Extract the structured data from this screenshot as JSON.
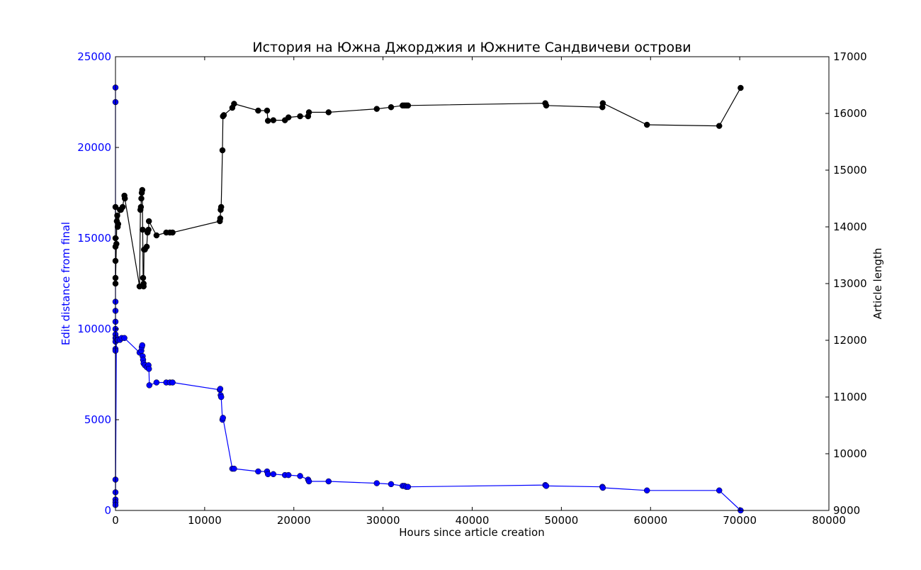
{
  "chart_data": {
    "type": "line",
    "title": "История на Южна Джорджия и Южните Сандвичеви острови",
    "xlabel": "Hours since article creation",
    "ylabel_left": "Edit distance from final",
    "ylabel_right": "Article length",
    "xlim": [
      0,
      80000
    ],
    "ylim_left": [
      0,
      25000
    ],
    "ylim_right": [
      9000,
      17000
    ],
    "x_ticks": [
      "0",
      "10000",
      "20000",
      "30000",
      "40000",
      "50000",
      "60000",
      "70000",
      "80000"
    ],
    "y_left_ticks": [
      "0",
      "5000",
      "10000",
      "15000",
      "20000",
      "25000"
    ],
    "y_right_ticks": [
      "9000",
      "10000",
      "11000",
      "12000",
      "13000",
      "14000",
      "15000",
      "16000",
      "17000"
    ],
    "grid": false,
    "colors": {
      "left_series": "#0000ff",
      "right_series": "#000000",
      "left_axis_text": "#0000ff"
    },
    "series": [
      {
        "axis": "left",
        "points": [
          [
            0,
            23300
          ],
          [
            0,
            22500
          ],
          [
            0,
            11500
          ],
          [
            0,
            11000
          ],
          [
            0,
            10400
          ],
          [
            0,
            10000
          ],
          [
            0,
            9700
          ],
          [
            0,
            9500
          ],
          [
            0,
            9300
          ],
          [
            0,
            8900
          ],
          [
            0,
            8800
          ],
          [
            0,
            1700
          ],
          [
            0,
            1000
          ],
          [
            0,
            600
          ],
          [
            0,
            450
          ],
          [
            0,
            300
          ],
          [
            100,
            9500
          ],
          [
            200,
            9400
          ],
          [
            300,
            9400
          ],
          [
            500,
            9400
          ],
          [
            700,
            9500
          ],
          [
            1000,
            9500
          ],
          [
            2700,
            8700
          ],
          [
            2900,
            8800
          ],
          [
            2950,
            9000
          ],
          [
            3000,
            9100
          ],
          [
            3050,
            8500
          ],
          [
            3100,
            8300
          ],
          [
            3150,
            8100
          ],
          [
            3300,
            8000
          ],
          [
            3500,
            7900
          ],
          [
            3700,
            8000
          ],
          [
            3750,
            7800
          ],
          [
            3800,
            6900
          ],
          [
            4600,
            7050
          ],
          [
            5700,
            7050
          ],
          [
            6100,
            7050
          ],
          [
            6400,
            7050
          ],
          [
            11700,
            6650
          ],
          [
            11750,
            6700
          ],
          [
            11800,
            6350
          ],
          [
            11850,
            6250
          ],
          [
            12000,
            5000
          ],
          [
            12050,
            5100
          ],
          [
            13100,
            2300
          ],
          [
            13300,
            2300
          ],
          [
            16000,
            2150
          ],
          [
            17000,
            2150
          ],
          [
            17100,
            2000
          ],
          [
            17700,
            2000
          ],
          [
            19000,
            1950
          ],
          [
            19400,
            1950
          ],
          [
            20700,
            1900
          ],
          [
            21600,
            1700
          ],
          [
            21700,
            1600
          ],
          [
            23900,
            1600
          ],
          [
            29300,
            1500
          ],
          [
            30900,
            1450
          ],
          [
            32200,
            1350
          ],
          [
            32400,
            1350
          ],
          [
            32600,
            1300
          ],
          [
            32800,
            1300
          ],
          [
            48200,
            1400
          ],
          [
            48300,
            1350
          ],
          [
            54600,
            1300
          ],
          [
            54650,
            1250
          ],
          [
            59600,
            1100
          ],
          [
            67700,
            1100
          ],
          [
            70100,
            0
          ]
        ]
      },
      {
        "axis": "right",
        "points": [
          [
            0,
            14350
          ],
          [
            0,
            13800
          ],
          [
            0,
            13650
          ],
          [
            0,
            13400
          ],
          [
            0,
            13100
          ],
          [
            0,
            13000
          ],
          [
            100,
            13700
          ],
          [
            150,
            14100
          ],
          [
            200,
            14200
          ],
          [
            250,
            14000
          ],
          [
            300,
            14050
          ],
          [
            500,
            14300
          ],
          [
            600,
            14300
          ],
          [
            800,
            14350
          ],
          [
            1000,
            14550
          ],
          [
            1050,
            14500
          ],
          [
            2700,
            12950
          ],
          [
            2800,
            14300
          ],
          [
            2850,
            14350
          ],
          [
            2900,
            14500
          ],
          [
            2950,
            14600
          ],
          [
            3000,
            14650
          ],
          [
            3050,
            13950
          ],
          [
            3100,
            13100
          ],
          [
            3150,
            13000
          ],
          [
            3150,
            12950
          ],
          [
            3200,
            13600
          ],
          [
            3300,
            13600
          ],
          [
            3500,
            13650
          ],
          [
            3600,
            13900
          ],
          [
            3700,
            13950
          ],
          [
            3750,
            14100
          ],
          [
            4600,
            13850
          ],
          [
            5700,
            13900
          ],
          [
            6100,
            13900
          ],
          [
            6400,
            13900
          ],
          [
            11700,
            14100
          ],
          [
            11750,
            14150
          ],
          [
            11800,
            14300
          ],
          [
            11850,
            14350
          ],
          [
            12000,
            15350
          ],
          [
            12050,
            15950
          ],
          [
            12150,
            15970
          ],
          [
            13100,
            16100
          ],
          [
            13300,
            16170
          ],
          [
            16000,
            16050
          ],
          [
            17000,
            16050
          ],
          [
            17100,
            15870
          ],
          [
            17700,
            15880
          ],
          [
            19000,
            15880
          ],
          [
            19400,
            15930
          ],
          [
            20700,
            15950
          ],
          [
            21600,
            15950
          ],
          [
            21700,
            16020
          ],
          [
            23900,
            16020
          ],
          [
            29300,
            16080
          ],
          [
            30900,
            16110
          ],
          [
            32200,
            16140
          ],
          [
            32400,
            16140
          ],
          [
            32600,
            16140
          ],
          [
            32800,
            16140
          ],
          [
            48200,
            16180
          ],
          [
            48300,
            16140
          ],
          [
            54600,
            16110
          ],
          [
            54650,
            16180
          ],
          [
            59600,
            15800
          ],
          [
            67700,
            15780
          ],
          [
            70100,
            16450
          ]
        ]
      }
    ]
  }
}
